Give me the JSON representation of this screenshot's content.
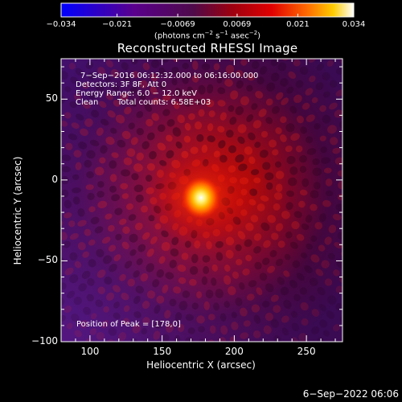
{
  "chart_data": {
    "type": "heatmap",
    "title": "Reconstructed RHESSI Image",
    "xlabel": "Heliocentric X (arcsec)",
    "ylabel": "Heliocentric Y (arcsec)",
    "xlim": [
      80,
      275
    ],
    "ylim": [
      -100,
      75
    ],
    "xticks": [
      100,
      150,
      200,
      250
    ],
    "xtick_labels": [
      "100",
      "150",
      "200",
      "250"
    ],
    "yticks": [
      -100,
      -50,
      0,
      50
    ],
    "ytick_labels": [
      "−100",
      "−50",
      "0",
      "50"
    ],
    "peak": [
      178,
      0
    ],
    "colorbar": {
      "min": -0.034,
      "max": 0.034,
      "ticks": [
        -0.034,
        -0.021,
        -0.0069,
        0.0069,
        0.021,
        0.034
      ],
      "tick_labels": [
        "−0.034",
        "−0.021",
        "−0.0069",
        "0.0069",
        "0.021",
        "0.034"
      ],
      "unit_prefix": "(photons cm",
      "unit_exp1": "−2",
      "unit_mid1": " s",
      "unit_exp2": "−1",
      "unit_mid2": " asec",
      "unit_exp3": "−2",
      "unit_suffix": ")"
    },
    "info": {
      "line1": "7−Sep−2016 06:12:32.000 to 06:16:00.000",
      "line2": "Detectors: 3F 8F, Att 0",
      "line3": "Energy Range: 6.0 − 12.0 keV",
      "line4_a": "Clean",
      "line4_b": "Total counts: 6.58E+03",
      "peak_text": "Position of Peak = [178,0]"
    },
    "colors": {
      "background": "#000000",
      "colormap": [
        "#0000ff",
        "#5a008c",
        "#6a0a6a",
        "#a00010",
        "#e00000",
        "#ff6000",
        "#ffc800",
        "#ffffff"
      ]
    }
  },
  "footer": {
    "timestamp": "6−Sep−2022 06:06"
  }
}
